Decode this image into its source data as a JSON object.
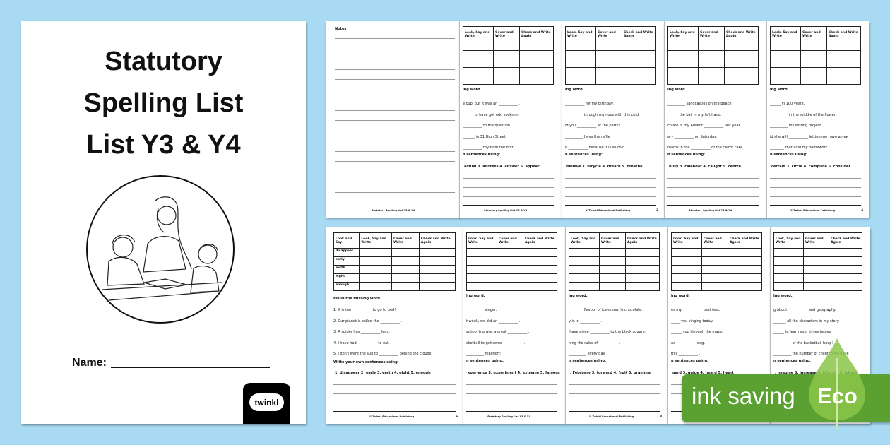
{
  "cover": {
    "title_lines": [
      "Statutory",
      "Spelling List",
      "List Y3 & Y4"
    ],
    "name_label": "Name:",
    "logo_text": "twinkl"
  },
  "table_headers": [
    "Look and Say",
    "Look, Say and Write",
    "Cover and Write",
    "Check and Write Again"
  ],
  "top_pages": [
    {
      "notes_title": "Notes",
      "footer": "Statutory Spelling List Y3 & Y4"
    },
    {
      "heading": "ing word.",
      "sentences": [
        "e cup, but it was an ___________ .",
        "______ to have got odd socks on",
        "___________ to the question.",
        "_______ is 31 High Street.",
        "___________ toy from the first"
      ],
      "write_heading": "n sentences using:",
      "words": "actual   3. address   4. answer   5. appear",
      "footer": "Statutory Spelling List Y3 & Y4",
      "page": ""
    },
    {
      "heading": "ing word.",
      "sentences": [
        "___________ for my birthday.",
        "__________ through my nose with this cold",
        "id you ___________ at the party?",
        "__________ I was the raffle",
        "y ___________ because it is so cold."
      ],
      "write_heading": "n sentences using:",
      "words": "believe   3. bicycle   4. breath   5. breathe",
      "footer": "© Twinkl Educational Publishing",
      "page": "2"
    },
    {
      "heading": "ing word.",
      "sentences": [
        "__________ sandcastles on the beach.",
        "______ the ball in my left hand.",
        "colate in my Advent ___________ last year.",
        "ary ___________ on Saturday.",
        "reams in the ___________ of the carrot cake."
      ],
      "write_heading": "n sentences using:",
      "words": "busy     3. calendar  4. caught   5. centre",
      "footer": "Statutory Spelling List Y3 & Y4",
      "page": ""
    },
    {
      "heading": "ing word.",
      "sentences": [
        "______ in 100 years.",
        "__________ in the middle of the flower.",
        "__________ my writing project.",
        "id she will ___________ letting me have a new",
        "________ that I did my homework."
      ],
      "write_heading": "n sentences using:",
      "words": "certain   3. circle   4. complete   5. consider",
      "footer": "© Twinkl Educational Publishing",
      "page": "4"
    }
  ],
  "bottom_pages": [
    {
      "words_col": [
        "disappear",
        "early",
        "earth",
        "eight",
        "enough"
      ],
      "heading": "Fill in the missing word.",
      "sentences": [
        "1.   It is too ___________ to go to bed!",
        "2.   Our planet is called the ___________ .",
        "3.   A spider has ___________ legs.",
        "4.   I have had ___________ to eat.",
        "5.   I don't want the sun to ___________ behind the clouds!"
      ],
      "write_heading": "Write your own sentences using:",
      "words": "1. disappear   2. early    3. earth    4. eight    5. enough",
      "footer": "© Twinkl Educational Publishing",
      "page": "6"
    },
    {
      "heading": "ing word.",
      "sentences": [
        "__________ singer.",
        "t week, we did an ___________ .",
        "school trip was a great ___________ .",
        "sketball to get some ___________ .",
        "__________ reaction!"
      ],
      "write_heading": "n sentences using:",
      "words": "xperience  3. experiment  4. extreme   5. famous",
      "footer": "Statutory Spelling List Y3 & Y4",
      "page": ""
    },
    {
      "heading": "ing word.",
      "sentences": [
        "________ flavour of ice-cream is chocolate.",
        "y is in ___________ .",
        "ihave piece ___________ to the black square.",
        "ning the rules of ___________ .",
        "__________ every day."
      ],
      "write_heading": "n sentences using:",
      "words": ". February  3. forward  4. fruit     5. grammar",
      "footer": "© Twinkl Educational Publishing",
      "page": "8"
    },
    {
      "heading": "ing word.",
      "sentences": [
        "es my ___________ best feet.",
        "_____ you singing today.",
        "______ you through the maze.",
        "ad ___________ dog.",
        "this ___________ ."
      ],
      "write_heading": "n sentences using:",
      "words": "uard     3. guide     4. heard    5. heart",
      "footer": "Statutory Spelling List Y3 & Y4",
      "page": ""
    },
    {
      "heading": "ing word.",
      "sentences": [
        "g about ___________ and geography.",
        "_______ all the characters in my story.",
        "______ to learn your times tables.",
        "__________ of the basketball hoop?",
        "__________ the number of children we have"
      ],
      "write_heading": "n sentences using:",
      "words": ". imagine   3. increase  4. interest  5. island",
      "footer": "",
      "page": ""
    }
  ],
  "badge": {
    "text": "ink saving",
    "eco": "Eco",
    "green": "#5aa132",
    "leaf": "#8cc64a"
  }
}
